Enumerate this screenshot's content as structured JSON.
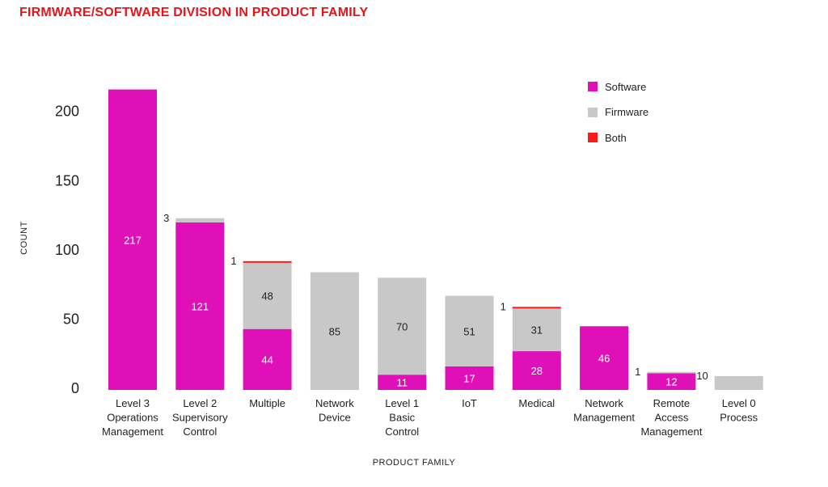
{
  "title": "FIRMWARE/SOFTWARE DIVISION IN PRODUCT FAMILY",
  "colors": {
    "Software": "#e010b8",
    "Firmware": "#c8c8c8",
    "Both": "#ff1a1a",
    "title": "#e8141a"
  },
  "chart_data": {
    "type": "bar",
    "stacked": true,
    "title": "FIRMWARE/SOFTWARE DIVISION IN PRODUCT FAMILY",
    "xlabel": "PRODUCT FAMILY",
    "ylabel": "COUNT",
    "ylim": [
      0,
      230
    ],
    "yticks": [
      0,
      50,
      100,
      150,
      200
    ],
    "grid": false,
    "legend_position": "top-right",
    "categories": [
      [
        "Level 3",
        "Operations",
        "Management"
      ],
      [
        "Level 2",
        "Supervisory",
        "Control"
      ],
      [
        "Multiple"
      ],
      [
        "Network",
        "Device"
      ],
      [
        "Level 1",
        "Basic",
        "Control"
      ],
      [
        "IoT"
      ],
      [
        "Medical"
      ],
      [
        "Network",
        "Management"
      ],
      [
        "Remote",
        "Access",
        "Management"
      ],
      [
        "Level 0",
        "Process"
      ]
    ],
    "series": [
      {
        "name": "Software",
        "values": [
          217,
          121,
          44,
          0,
          11,
          17,
          28,
          46,
          12,
          0
        ]
      },
      {
        "name": "Firmware",
        "values": [
          0,
          3,
          48,
          85,
          70,
          51,
          31,
          0,
          1,
          10
        ]
      },
      {
        "name": "Both",
        "values": [
          0,
          0,
          1,
          0,
          0,
          0,
          1,
          0,
          0,
          0
        ]
      }
    ]
  }
}
